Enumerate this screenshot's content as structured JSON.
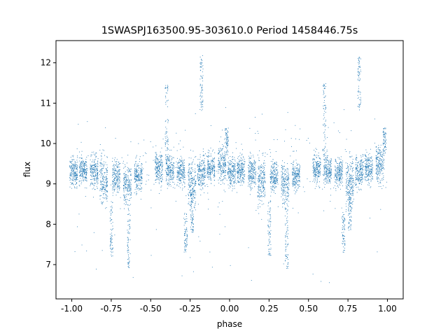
{
  "chart_data": {
    "type": "scatter",
    "title": "1SWASPJ163500.95-303610.0 Period 1458446.75s",
    "xlabel": "phase",
    "ylabel": "flux",
    "xlim": [
      -1.1,
      1.1
    ],
    "ylim": [
      6.15,
      12.55
    ],
    "xticks": [
      "-1.00",
      "-0.75",
      "-0.50",
      "-0.25",
      "0.00",
      "0.25",
      "0.50",
      "0.75",
      "1.00"
    ],
    "xtick_values": [
      -1.0,
      -0.75,
      -0.5,
      -0.25,
      0.0,
      0.25,
      0.5,
      0.75,
      1.0
    ],
    "yticks": [
      "7",
      "8",
      "9",
      "10",
      "11",
      "12"
    ],
    "ytick_values": [
      7,
      8,
      9,
      10,
      11,
      12
    ],
    "grid": false,
    "marker_color": "#1f77b4",
    "folded": true,
    "baseline_flux": 9.35,
    "clusters": [
      {
        "phase": -0.99,
        "center": 9.3,
        "spread": 0.35
      },
      {
        "phase": -0.93,
        "center": 9.35,
        "spread": 0.35
      },
      {
        "phase": -0.86,
        "center": 9.3,
        "spread": 0.4
      },
      {
        "phase": -0.8,
        "center": 9.1,
        "spread": 0.6
      },
      {
        "phase": -0.72,
        "center": 9.2,
        "spread": 0.4
      },
      {
        "phase": -0.65,
        "center": 9.0,
        "spread": 0.5
      },
      {
        "phase": -0.58,
        "center": 9.2,
        "spread": 0.35
      },
      {
        "phase": -0.45,
        "center": 9.4,
        "spread": 0.4
      },
      {
        "phase": -0.38,
        "center": 9.35,
        "spread": 0.35
      },
      {
        "phase": -0.31,
        "center": 9.3,
        "spread": 0.35
      },
      {
        "phase": -0.24,
        "center": 9.0,
        "spread": 0.6
      },
      {
        "phase": -0.18,
        "center": 9.3,
        "spread": 0.4
      },
      {
        "phase": -0.12,
        "center": 9.4,
        "spread": 0.4
      },
      {
        "phase": -0.05,
        "center": 9.5,
        "spread": 0.45
      },
      {
        "phase": 0.01,
        "center": 9.3,
        "spread": 0.35
      },
      {
        "phase": 0.07,
        "center": 9.35,
        "spread": 0.35
      },
      {
        "phase": 0.14,
        "center": 9.3,
        "spread": 0.4
      },
      {
        "phase": 0.2,
        "center": 9.1,
        "spread": 0.6
      },
      {
        "phase": 0.28,
        "center": 9.2,
        "spread": 0.4
      },
      {
        "phase": 0.35,
        "center": 9.0,
        "spread": 0.5
      },
      {
        "phase": 0.42,
        "center": 9.2,
        "spread": 0.35
      },
      {
        "phase": 0.55,
        "center": 9.4,
        "spread": 0.4
      },
      {
        "phase": 0.62,
        "center": 9.35,
        "spread": 0.35
      },
      {
        "phase": 0.69,
        "center": 9.3,
        "spread": 0.35
      },
      {
        "phase": 0.76,
        "center": 9.0,
        "spread": 0.6
      },
      {
        "phase": 0.82,
        "center": 9.3,
        "spread": 0.4
      },
      {
        "phase": 0.88,
        "center": 9.4,
        "spread": 0.4
      },
      {
        "phase": 0.95,
        "center": 9.5,
        "spread": 0.45
      }
    ],
    "streaks": [
      {
        "phase": -0.18,
        "from": 10.8,
        "to": 12.2
      },
      {
        "phase": 0.82,
        "from": 10.8,
        "to": 12.2
      },
      {
        "phase": -0.4,
        "from": 9.6,
        "to": 11.5
      },
      {
        "phase": 0.6,
        "from": 9.6,
        "to": 11.5
      },
      {
        "phase": -0.24,
        "from": 7.8,
        "to": 8.8
      },
      {
        "phase": 0.76,
        "from": 7.8,
        "to": 8.8
      },
      {
        "phase": -0.64,
        "from": 6.9,
        "to": 8.5
      },
      {
        "phase": 0.36,
        "from": 6.9,
        "to": 8.5
      },
      {
        "phase": -0.75,
        "from": 7.2,
        "to": 8.6
      },
      {
        "phase": 0.25,
        "from": 7.2,
        "to": 8.6
      },
      {
        "phase": -0.28,
        "from": 7.3,
        "to": 8.3
      },
      {
        "phase": 0.72,
        "from": 7.3,
        "to": 8.3
      },
      {
        "phase": -0.02,
        "from": 9.7,
        "to": 10.4
      },
      {
        "phase": 0.98,
        "from": 9.7,
        "to": 10.4
      }
    ]
  }
}
